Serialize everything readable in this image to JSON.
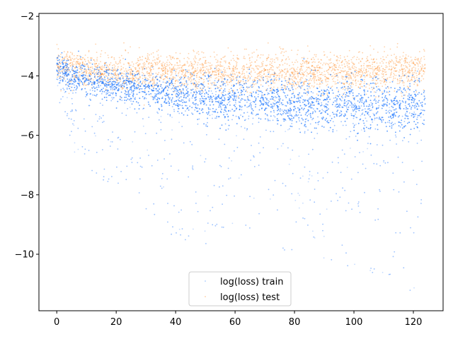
{
  "chart_data": {
    "type": "scatter",
    "title": "",
    "xlabel": "",
    "ylabel": "",
    "xlim": [
      -6,
      130
    ],
    "ylim": [
      -11.9,
      -1.9
    ],
    "x_ticks": [
      0,
      20,
      40,
      60,
      80,
      100,
      120
    ],
    "y_ticks": [
      -2,
      -4,
      -6,
      -8,
      -10
    ],
    "x_tick_labels": [
      "0",
      "20",
      "40",
      "60",
      "80",
      "100",
      "120"
    ],
    "y_tick_labels": [
      "−2",
      "−4",
      "−6",
      "−8",
      "−10"
    ],
    "grid": false,
    "legend_position": "bottom-center",
    "x_range_of_points": [
      0,
      124
    ],
    "series": [
      {
        "name": "log(loss) train",
        "color": "#1f77ff",
        "alpha": 0.15,
        "approx_trend": {
          "x": [
            0,
            5,
            10,
            20,
            40,
            60,
            80,
            100,
            124
          ],
          "median": [
            -3.7,
            -4.0,
            -4.1,
            -4.3,
            -4.6,
            -4.8,
            -4.9,
            -5.0,
            -5.0
          ],
          "spread_upper": [
            0.5,
            0.5,
            0.5,
            0.5,
            0.6,
            0.7,
            0.7,
            0.8,
            0.8
          ],
          "spread_lower_tail_min": [
            -4.8,
            -6.5,
            -7.0,
            -8.0,
            -9.5,
            -9.8,
            -10.2,
            -10.5,
            -11.5
          ]
        }
      },
      {
        "name": "log(loss) test",
        "color": "#ff7f0e",
        "alpha": 0.15,
        "approx_trend": {
          "x": [
            0,
            5,
            10,
            20,
            40,
            60,
            80,
            100,
            124
          ],
          "median": [
            -3.6,
            -3.7,
            -3.8,
            -3.9,
            -3.9,
            -3.9,
            -3.9,
            -3.9,
            -3.8
          ],
          "spread": [
            0.3,
            0.35,
            0.35,
            0.4,
            0.4,
            0.4,
            0.4,
            0.4,
            0.4
          ]
        }
      }
    ]
  }
}
